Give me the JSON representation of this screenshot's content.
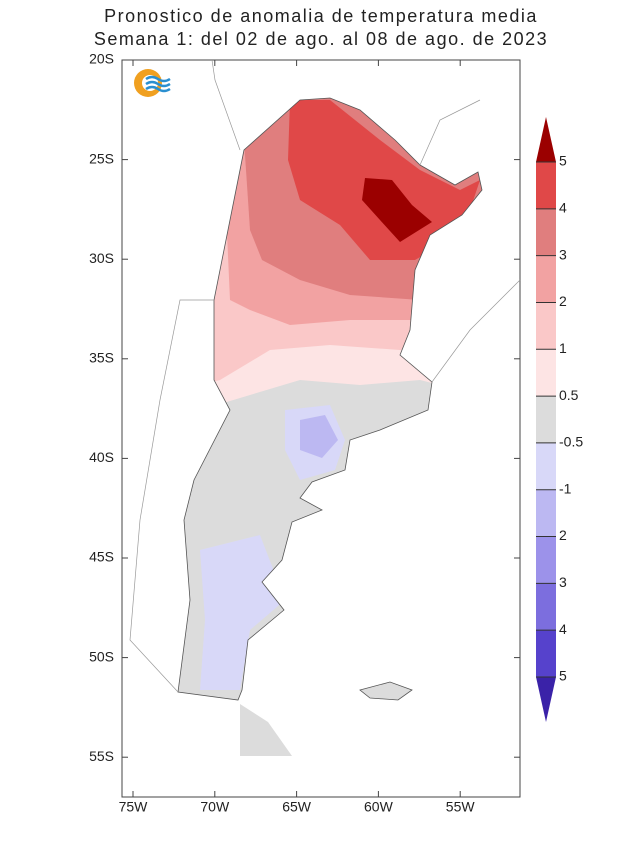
{
  "header": {
    "line1": "Pronostico de anomalia de temperatura media",
    "line2": "Semana 1: del 02 de ago. al 08 de ago. de 2023"
  },
  "axes": {
    "lat_labels": [
      "20S",
      "25S",
      "30S",
      "35S",
      "40S",
      "45S",
      "50S",
      "55S"
    ],
    "lon_labels": [
      "75W",
      "70W",
      "65W",
      "60W",
      "55W"
    ]
  },
  "colorbar": {
    "labels": [
      "5",
      "4",
      "3",
      "2",
      "1",
      "0.5",
      "-0.5",
      "-1",
      "2",
      "3",
      "4",
      "5"
    ],
    "colors": [
      "#9b0000",
      "#e04848",
      "#e07e7e",
      "#f2a2a2",
      "#fac8c8",
      "#fde4e4",
      "#dcdcdc",
      "#d8d8f8",
      "#bcb8f2",
      "#9c92ea",
      "#7c6ede",
      "#5642cc",
      "#3a22a8"
    ]
  }
}
